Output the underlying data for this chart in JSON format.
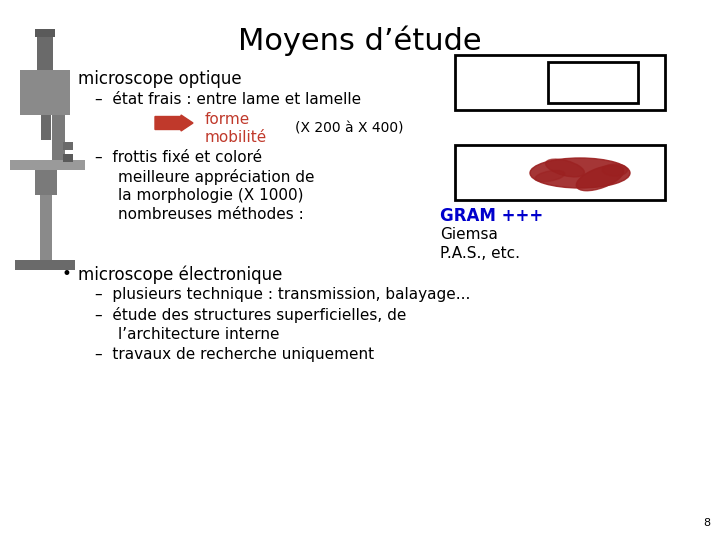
{
  "title": "Moyens d’étude",
  "background_color": "#ffffff",
  "title_fontsize": 22,
  "page_number": "8",
  "content": {
    "bullet1": "microscope optique",
    "sub1a": "–  état frais : entre lame et lamelle",
    "forme_label": "forme",
    "mobilite_label": "mobilité",
    "forme_color": "#c0392b",
    "arrow_color": "#c0392b",
    "magnification": "(X 200 à X 400)",
    "sub1b_line1": "–  frottis fixé et coloré",
    "sub1b_line2": "meilleure appréciation de",
    "sub1b_line3": "la morphologie (X 1000)",
    "sub1b_line4": "nombreuses méthodes :",
    "gram_label": "GRAM +++",
    "gram_color": "#0000cc",
    "giemsa_label": "Giemsa",
    "pas_label": "P.A.S., etc.",
    "bullet2": "microscope électronique",
    "sub2a": "–  plusieurs technique : transmission, balayage...",
    "sub2b_line1": "–  étude des structures superficielles, de",
    "sub2b_line2": "l’architecture interne",
    "sub2c": "–  travaux de recherche uniquement"
  },
  "smear_color": "#9B2020",
  "text_fontsize": 11,
  "sub_fontsize": 11,
  "gram_fontsize": 12
}
